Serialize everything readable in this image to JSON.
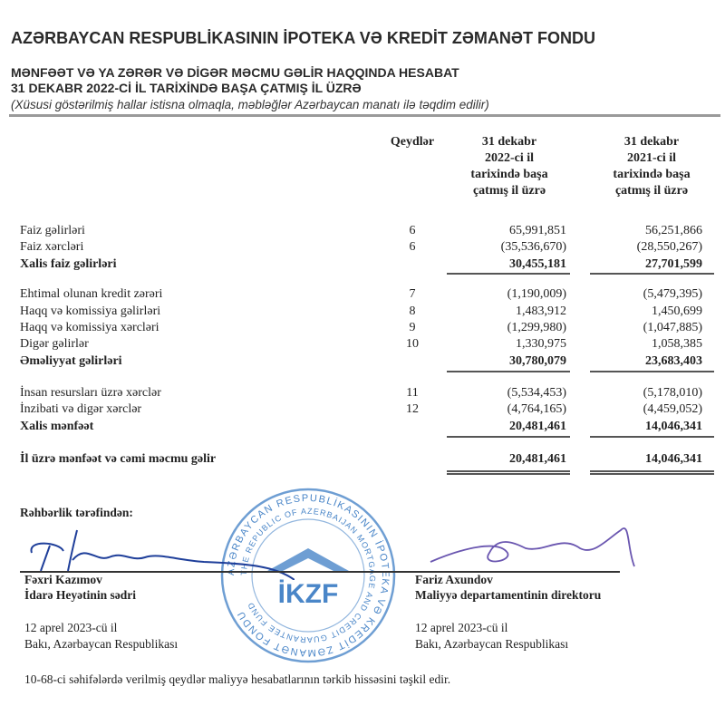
{
  "header": {
    "organization": "AZƏRBAYCAN RESPUBLİKASININ İPOTEKA VƏ KREDİT ZƏMANƏT FONDU",
    "statement_title": "MƏNFƏƏT VƏ YA ZƏRƏR VƏ DİGƏR MƏCMU GƏLİR HAQQINDA HESABAT",
    "period": "31 DEKABR 2022-Cİ İL TARİXİNDƏ BAŞA ÇATMIŞ İL ÜZRƏ",
    "currency_note": "(Xüsusi göstərilmiş hallar istisna olmaqla, məbləğlər Azərbaycan manatı ilə təqdim edilir)"
  },
  "table": {
    "columns": {
      "notes": "Qeydlər",
      "col1": [
        "31 dekabr",
        "2022-ci il",
        "tarixində başa",
        "çatmış il üzrə"
      ],
      "col2": [
        "31 dekabr",
        "2021-ci il",
        "tarixində başa",
        "çatmış il üzrə"
      ]
    },
    "rows": [
      {
        "label": "Faiz gəlirləri",
        "note": "6",
        "v2022": "65,991,851",
        "v2021": "56,251,866",
        "bold": false
      },
      {
        "label": "Faiz xərcləri",
        "note": "6",
        "v2022": "(35,536,670)",
        "v2021": "(28,550,267)",
        "bold": false
      },
      {
        "label": "Xalis faiz gəlirləri",
        "note": "",
        "v2022": "30,455,181",
        "v2021": "27,701,599",
        "bold": true
      },
      {
        "label": "Ehtimal olunan kredit zərəri",
        "note": "7",
        "v2022": "(1,190,009)",
        "v2021": "(5,479,395)",
        "bold": false
      },
      {
        "label": "Haqq və komissiya gəlirləri",
        "note": "8",
        "v2022": "1,483,912",
        "v2021": "1,450,699",
        "bold": false
      },
      {
        "label": "Haqq və komissiya xərcləri",
        "note": "9",
        "v2022": "(1,299,980)",
        "v2021": "(1,047,885)",
        "bold": false
      },
      {
        "label": "Digər gəlirlər",
        "note": "10",
        "v2022": "1,330,975",
        "v2021": "1,058,385",
        "bold": false
      },
      {
        "label": "Əməliyyat gəlirləri",
        "note": "",
        "v2022": "30,780,079",
        "v2021": "23,683,403",
        "bold": true
      },
      {
        "label": "İnsan resursları üzrə xərclər",
        "note": "11",
        "v2022": "(5,534,453)",
        "v2021": "(5,178,010)",
        "bold": false
      },
      {
        "label": "İnzibati və digər xərclər",
        "note": "12",
        "v2022": "(4,764,165)",
        "v2021": "(4,459,052)",
        "bold": false
      },
      {
        "label": "Xalis mənfəət",
        "note": "",
        "v2022": "20,481,461",
        "v2021": "14,046,341",
        "bold": true
      },
      {
        "label": "İl üzrə mənfəət və cəmi məcmu gəlir",
        "note": "",
        "v2022": "20,481,461",
        "v2021": "14,046,341",
        "bold": true
      }
    ]
  },
  "signatures": {
    "heading": "Rəhbərlik tərəfindən:",
    "left": {
      "name": "Fəxri Kazımov",
      "position": "İdarə Heyətinin sədri",
      "date": "12 aprel 2023-cü il",
      "place": "Bakı, Azərbaycan Respublikası"
    },
    "right": {
      "name": "Fariz Axundov",
      "position": "Maliyyə departamentinin direktoru",
      "date": "12 aprel 2023-cü il",
      "place": "Bakı, Azərbaycan Respublikası"
    }
  },
  "stamp": {
    "outer_text": "AZƏRBAYCAN RESPUBLİKASININ İPOTEKA VƏ KREDİT ZƏMANƏT FONDU",
    "inner_text": "THE REPUBLIC OF AZERBAIJAN MORTGAGE AND CREDIT GUARANTEE FUND",
    "logo": "İKZF",
    "color": "#4a86c8"
  },
  "footer": "10-68-ci səhifələrdə verilmiş qeydlər maliyyə hesabatlarının tərkib hissəsini təşkil edir."
}
